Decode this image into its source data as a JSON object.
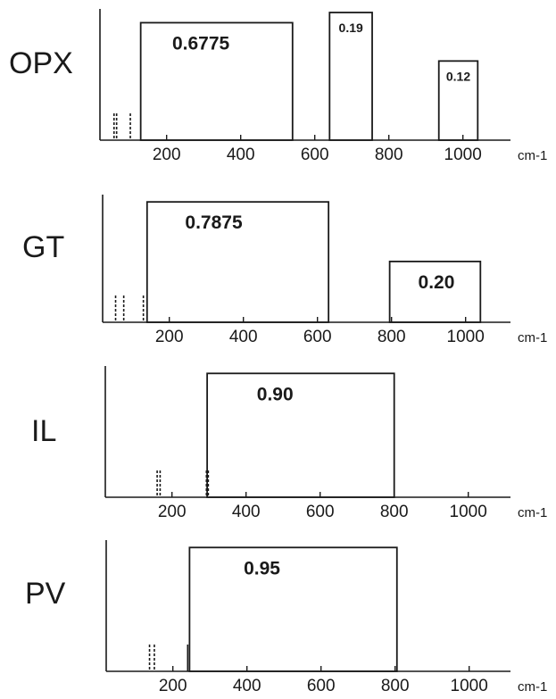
{
  "chart_data": [
    {
      "type": "bar",
      "mineral": "OPX",
      "xunit": "cm-1",
      "xticks": [
        200,
        400,
        600,
        800,
        1000
      ],
      "xlim": [
        0,
        1150
      ],
      "boxes": [
        {
          "x0": 130,
          "x1": 540,
          "label": "0.6775",
          "height": 0.92
        },
        {
          "x0": 640,
          "x1": 755,
          "label": "0.19",
          "height": 1.0
        },
        {
          "x0": 935,
          "x1": 1040,
          "label": "0.12",
          "height": 0.62
        }
      ],
      "lines": [
        {
          "x": 58,
          "style": "dashed"
        },
        {
          "x": 65,
          "style": "dashed"
        },
        {
          "x": 102,
          "style": "dashed"
        }
      ]
    },
    {
      "type": "bar",
      "mineral": "GT",
      "xunit": "cm-1",
      "xticks": [
        200,
        400,
        600,
        800,
        1000
      ],
      "xlim": [
        0,
        1150
      ],
      "boxes": [
        {
          "x0": 140,
          "x1": 630,
          "label": "0.7875",
          "height": 0.97
        },
        {
          "x0": 795,
          "x1": 1040,
          "label": "0.20",
          "height": 0.49
        }
      ],
      "lines": [
        {
          "x": 55,
          "style": "dashed"
        },
        {
          "x": 77,
          "style": "dashed"
        },
        {
          "x": 130,
          "style": "dashed"
        }
      ]
    },
    {
      "type": "bar",
      "mineral": "IL",
      "xunit": "cm-1",
      "xticks": [
        200,
        400,
        600,
        800,
        1000
      ],
      "xlim": [
        0,
        1150
      ],
      "boxes": [
        {
          "x0": 295,
          "x1": 800,
          "label": "0.90",
          "height": 0.97
        }
      ],
      "lines": [
        {
          "x": 160,
          "style": "dashed"
        },
        {
          "x": 168,
          "style": "dashed"
        },
        {
          "x": 293,
          "style": "dashed"
        },
        {
          "x": 298,
          "style": "dashed"
        }
      ]
    },
    {
      "type": "bar",
      "mineral": "PV",
      "xunit": "cm-1",
      "xticks": [
        200,
        400,
        600,
        800,
        1000
      ],
      "xlim": [
        0,
        1150
      ],
      "boxes": [
        {
          "x0": 245,
          "x1": 805,
          "label": "0.95",
          "height": 0.97
        }
      ],
      "lines": [
        {
          "x": 137,
          "style": "dashed"
        },
        {
          "x": 150,
          "style": "dashed"
        },
        {
          "x": 240,
          "style": "solid"
        }
      ]
    }
  ]
}
